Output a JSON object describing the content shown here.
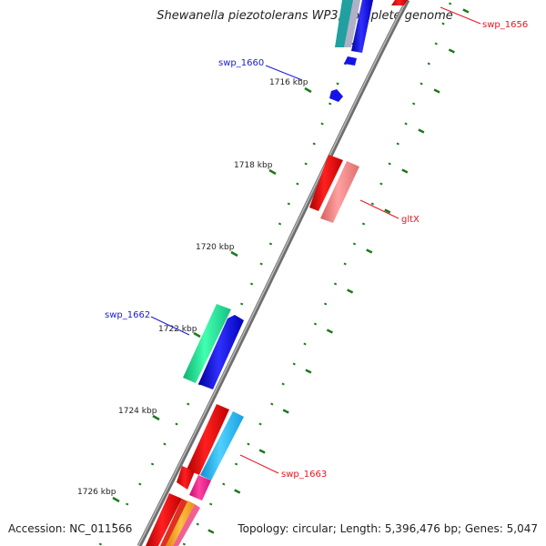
{
  "title": "Shewanella piezotolerans WP3, complete genome",
  "accession": {
    "label": "Accession:",
    "value": "NC_011566"
  },
  "topology": {
    "label": "Topology:",
    "topology": "circular",
    "length_label": "Length:",
    "length": "5,396,476 bp",
    "genes_label": "Genes:",
    "genes": "5,047"
  },
  "ticks": [
    "1716 kbp",
    "1718 kbp",
    "1720 kbp",
    "1722 kbp",
    "1724 kbp",
    "1726 kbp"
  ],
  "gene_labels": {
    "swp_1656": "swp_1656",
    "swp_1660": "swp_1660",
    "gltX": "gltX",
    "swp_1662": "swp_1662",
    "swp_1663": "swp_1663"
  },
  "colors": {
    "backbone": "#8a8a8a",
    "tick": "#1a7a1a",
    "label_red": "#e8141e",
    "label_blue": "#1a1ad6",
    "gene_red": "#e81010",
    "gene_pink": "#f08080",
    "gene_blue": "#1414e8",
    "gene_green": "#20e890",
    "gene_cyan": "#20b8f0",
    "gene_magenta": "#f02890",
    "gene_orange": "#f8a020"
  }
}
